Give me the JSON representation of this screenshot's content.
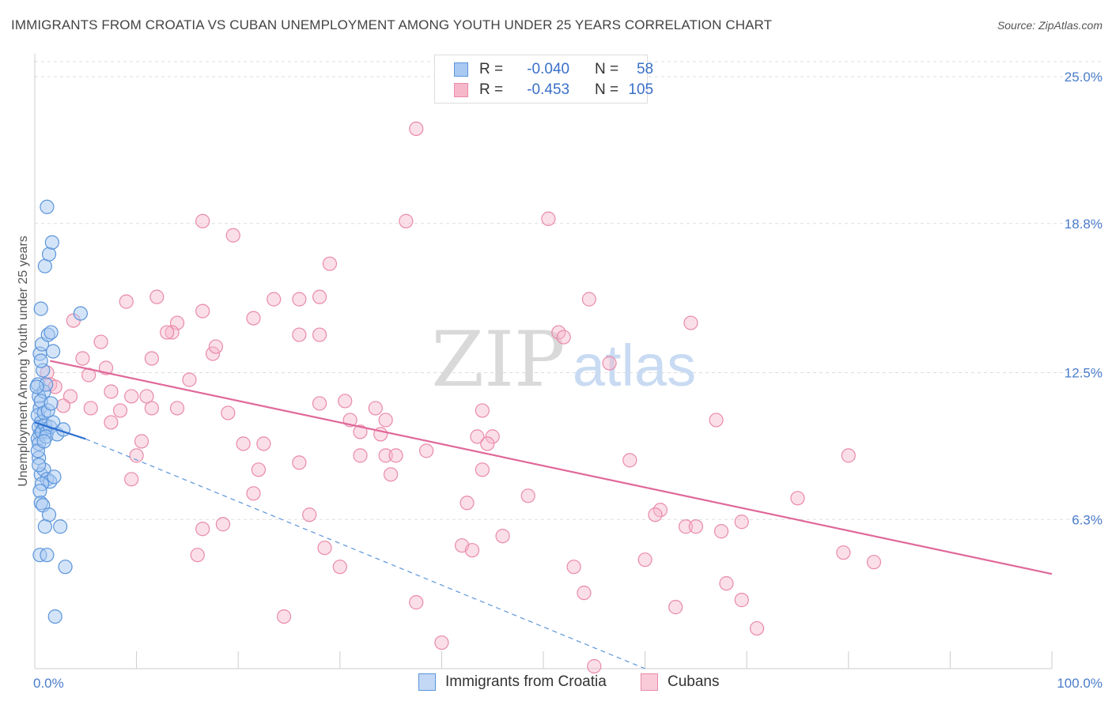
{
  "header": {
    "title": "IMMIGRANTS FROM CROATIA VS CUBAN UNEMPLOYMENT AMONG YOUTH UNDER 25 YEARS CORRELATION CHART",
    "source": "Source: ZipAtlas.com"
  },
  "watermark": {
    "zip": "ZIP",
    "atlas": "atlas"
  },
  "legend": {
    "r_label": "R =",
    "n_label": "N =",
    "rows": [
      {
        "r": "-0.040",
        "n": "58",
        "color": "#a9c9f2"
      },
      {
        "r": "-0.453",
        "n": "105",
        "color": "#f7b7cb"
      }
    ]
  },
  "colors": {
    "blue_fill": "#a9c9f2",
    "blue_stroke": "#5b95db",
    "blue_line": "#2a6dd0",
    "pink_fill": "#f7b7cb",
    "pink_stroke": "#e98aa8",
    "pink_line": "#e0689a",
    "grid": "#dddddd",
    "tick": "#4a7cc9"
  },
  "chart_data": {
    "type": "scatter",
    "title": "IMMIGRANTS FROM CROATIA VS CUBAN UNEMPLOYMENT AMONG YOUTH UNDER 25 YEARS CORRELATION CHART",
    "xlabel": "",
    "ylabel": "Unemployment Among Youth under 25 years",
    "xlim": [
      0,
      100
    ],
    "ylim": [
      0,
      25
    ],
    "x_tick_labels": [
      "0.0%",
      "100.0%"
    ],
    "y_ticks": [
      6.3,
      12.5,
      18.8,
      25.0
    ],
    "y_tick_labels": [
      "6.3%",
      "12.5%",
      "18.8%",
      "25.0%"
    ],
    "grid": true,
    "legend_position": "bottom",
    "series": [
      {
        "name": "Immigrants from Croatia",
        "r": -0.04,
        "n": 58,
        "trend": {
          "x0": 0.0,
          "y0": 10.4,
          "x1": 5.0,
          "y1": 9.7,
          "dashed_to_x": 60.0,
          "dashed_to_y": 0.0
        },
        "points": [
          [
            0.3,
            12.0
          ],
          [
            0.4,
            11.5
          ],
          [
            0.5,
            11.0
          ],
          [
            0.3,
            10.7
          ],
          [
            0.6,
            10.4
          ],
          [
            0.4,
            10.2
          ],
          [
            0.8,
            10.1
          ],
          [
            0.5,
            9.9
          ],
          [
            0.3,
            9.7
          ],
          [
            0.4,
            9.5
          ],
          [
            0.7,
            10.0
          ],
          [
            1.0,
            10.3
          ],
          [
            1.2,
            10.0
          ],
          [
            1.5,
            10.2
          ],
          [
            1.8,
            10.4
          ],
          [
            0.9,
            11.7
          ],
          [
            0.6,
            11.3
          ],
          [
            1.1,
            12.0
          ],
          [
            0.5,
            13.3
          ],
          [
            0.7,
            13.7
          ],
          [
            1.3,
            14.1
          ],
          [
            1.6,
            14.2
          ],
          [
            1.8,
            13.4
          ],
          [
            0.6,
            15.2
          ],
          [
            4.5,
            15.0
          ],
          [
            1.0,
            17.0
          ],
          [
            1.4,
            17.5
          ],
          [
            1.7,
            18.0
          ],
          [
            1.2,
            19.5
          ],
          [
            0.4,
            8.9
          ],
          [
            0.6,
            8.2
          ],
          [
            0.9,
            8.4
          ],
          [
            1.2,
            8.0
          ],
          [
            1.5,
            7.9
          ],
          [
            1.9,
            8.1
          ],
          [
            0.7,
            7.8
          ],
          [
            0.5,
            7.5
          ],
          [
            0.6,
            7.0
          ],
          [
            0.8,
            6.9
          ],
          [
            1.4,
            6.5
          ],
          [
            1.0,
            6.0
          ],
          [
            2.5,
            6.0
          ],
          [
            0.5,
            4.8
          ],
          [
            1.2,
            4.8
          ],
          [
            3.0,
            4.3
          ],
          [
            2.0,
            2.2
          ],
          [
            0.9,
            10.8
          ],
          [
            0.3,
            9.2
          ],
          [
            1.1,
            9.8
          ],
          [
            2.2,
            9.9
          ],
          [
            0.8,
            12.6
          ],
          [
            0.2,
            11.9
          ],
          [
            0.6,
            13.0
          ],
          [
            1.3,
            10.9
          ],
          [
            0.4,
            8.6
          ],
          [
            0.9,
            9.6
          ],
          [
            1.6,
            11.2
          ],
          [
            2.8,
            10.1
          ]
        ]
      },
      {
        "name": "Cubans",
        "r": -0.453,
        "n": 105,
        "trend": {
          "x0": 1.5,
          "y0": 13.0,
          "x1": 100.0,
          "y1": 4.0
        },
        "points": [
          [
            37.5,
            22.8
          ],
          [
            16.5,
            18.9
          ],
          [
            19.5,
            18.3
          ],
          [
            36.5,
            18.9
          ],
          [
            50.5,
            19.0
          ],
          [
            29.0,
            17.1
          ],
          [
            9.0,
            15.5
          ],
          [
            12.0,
            15.7
          ],
          [
            23.5,
            15.6
          ],
          [
            26.0,
            15.6
          ],
          [
            28.0,
            15.7
          ],
          [
            54.5,
            15.6
          ],
          [
            16.5,
            15.1
          ],
          [
            21.5,
            14.8
          ],
          [
            3.8,
            14.7
          ],
          [
            14.0,
            14.6
          ],
          [
            13.5,
            14.2
          ],
          [
            13.0,
            14.2
          ],
          [
            26.0,
            14.1
          ],
          [
            28.0,
            14.1
          ],
          [
            51.5,
            14.2
          ],
          [
            52.0,
            14.0
          ],
          [
            64.5,
            14.6
          ],
          [
            6.5,
            13.8
          ],
          [
            17.5,
            13.3
          ],
          [
            17.8,
            13.6
          ],
          [
            4.7,
            13.1
          ],
          [
            11.5,
            13.1
          ],
          [
            56.5,
            12.9
          ],
          [
            1.2,
            12.5
          ],
          [
            5.3,
            12.4
          ],
          [
            7.0,
            12.7
          ],
          [
            15.2,
            12.2
          ],
          [
            1.5,
            12.0
          ],
          [
            2.0,
            11.9
          ],
          [
            3.5,
            11.5
          ],
          [
            7.5,
            11.7
          ],
          [
            9.5,
            11.5
          ],
          [
            11.0,
            11.5
          ],
          [
            2.8,
            11.1
          ],
          [
            5.5,
            11.0
          ],
          [
            8.4,
            10.9
          ],
          [
            11.5,
            11.0
          ],
          [
            14.0,
            11.0
          ],
          [
            19.0,
            10.8
          ],
          [
            28.0,
            11.2
          ],
          [
            30.5,
            11.3
          ],
          [
            33.5,
            11.0
          ],
          [
            44.0,
            10.9
          ],
          [
            31.0,
            10.5
          ],
          [
            34.5,
            10.5
          ],
          [
            7.5,
            10.4
          ],
          [
            32.0,
            10.0
          ],
          [
            34.0,
            9.9
          ],
          [
            43.5,
            9.8
          ],
          [
            45.0,
            9.8
          ],
          [
            44.5,
            9.5
          ],
          [
            10.5,
            9.6
          ],
          [
            20.5,
            9.5
          ],
          [
            22.5,
            9.5
          ],
          [
            67.0,
            10.5
          ],
          [
            10.0,
            9.0
          ],
          [
            32.0,
            9.0
          ],
          [
            34.5,
            9.0
          ],
          [
            35.5,
            9.0
          ],
          [
            26.0,
            8.7
          ],
          [
            58.5,
            8.8
          ],
          [
            80.0,
            9.0
          ],
          [
            22.0,
            8.4
          ],
          [
            44.0,
            8.4
          ],
          [
            9.5,
            8.0
          ],
          [
            35.0,
            8.2
          ],
          [
            21.5,
            7.4
          ],
          [
            48.5,
            7.3
          ],
          [
            42.5,
            7.0
          ],
          [
            61.5,
            6.7
          ],
          [
            61.0,
            6.5
          ],
          [
            75.0,
            7.2
          ],
          [
            27.0,
            6.5
          ],
          [
            69.5,
            6.2
          ],
          [
            18.5,
            6.1
          ],
          [
            64.0,
            6.0
          ],
          [
            65.0,
            6.0
          ],
          [
            16.5,
            5.9
          ],
          [
            67.5,
            5.8
          ],
          [
            46.0,
            5.6
          ],
          [
            42.0,
            5.2
          ],
          [
            43.0,
            5.0
          ],
          [
            16.0,
            4.8
          ],
          [
            60.0,
            4.6
          ],
          [
            79.5,
            4.9
          ],
          [
            82.5,
            4.5
          ],
          [
            30.0,
            4.3
          ],
          [
            53.0,
            4.3
          ],
          [
            68.0,
            3.6
          ],
          [
            54.0,
            3.2
          ],
          [
            37.5,
            2.8
          ],
          [
            69.5,
            2.9
          ],
          [
            63.0,
            2.6
          ],
          [
            24.5,
            2.2
          ],
          [
            71.0,
            1.7
          ],
          [
            40.0,
            1.1
          ],
          [
            55.0,
            0.1
          ],
          [
            28.5,
            5.1
          ],
          [
            38.5,
            9.2
          ]
        ]
      }
    ]
  },
  "bottom_legend": {
    "items": [
      {
        "label": "Immigrants from Croatia"
      },
      {
        "label": "Cubans"
      }
    ]
  }
}
